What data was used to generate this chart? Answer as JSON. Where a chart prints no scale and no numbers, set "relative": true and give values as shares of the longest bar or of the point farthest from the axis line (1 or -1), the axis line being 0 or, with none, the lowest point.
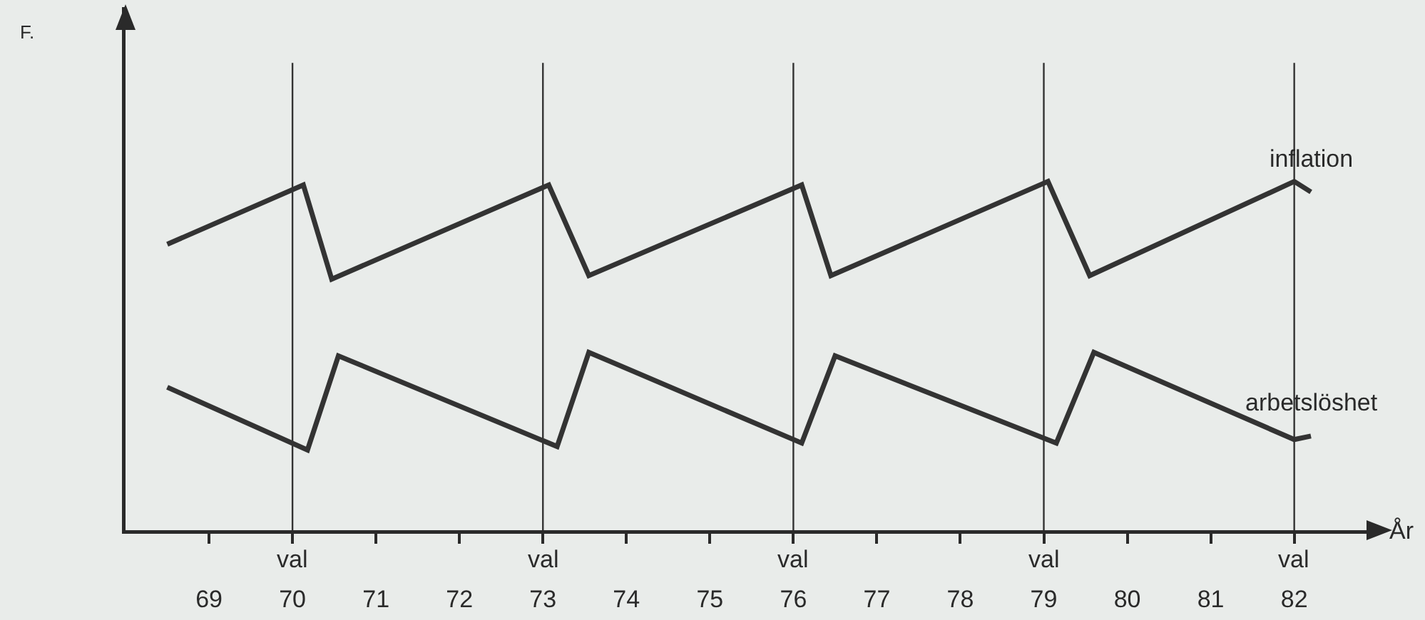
{
  "chart_data": {
    "type": "line",
    "relative": true,
    "annotations": [
      "F."
    ],
    "xlabel": "År",
    "xlim": [
      68,
      82.9
    ],
    "xticks": [
      69,
      70,
      71,
      72,
      73,
      74,
      75,
      76,
      77,
      78,
      79,
      80,
      81,
      82
    ],
    "grid": false,
    "legend": false,
    "marker": "none",
    "line_style": "solid",
    "series": [
      {
        "name": "inflation",
        "color": "#333333",
        "x": [
          68.5,
          70.13,
          70.47,
          73.07,
          73.55,
          76.1,
          76.45,
          79.05,
          79.55,
          82.0,
          82.2
        ],
        "values": [
          0.82,
          0.99,
          0.72,
          0.99,
          0.73,
          0.99,
          0.73,
          1.0,
          0.73,
          1.0,
          0.97
        ]
      },
      {
        "name": "arbetslöshet",
        "color": "#333333",
        "x": [
          68.5,
          70.18,
          70.55,
          73.17,
          73.55,
          76.1,
          76.5,
          79.15,
          79.6,
          82.0,
          82.2
        ],
        "values": [
          0.41,
          0.23,
          0.5,
          0.24,
          0.51,
          0.25,
          0.5,
          0.25,
          0.51,
          0.26,
          0.27
        ]
      }
    ],
    "ref_lines": [
      {
        "axis": "x",
        "value": 70,
        "label": "val"
      },
      {
        "axis": "x",
        "value": 73,
        "label": "val"
      },
      {
        "axis": "x",
        "value": 76,
        "label": "val"
      },
      {
        "axis": "x",
        "value": 79,
        "label": "val"
      },
      {
        "axis": "x",
        "value": 82,
        "label": "val"
      }
    ]
  }
}
